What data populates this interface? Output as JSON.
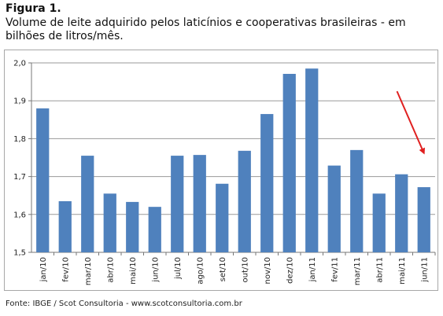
{
  "figure": {
    "label": "Figura 1.",
    "caption": "Volume de leite adquirido pelos laticínios e cooperativas brasileiras - em bilhões de litros/mês.",
    "source": "Fonte: IBGE / Scot Consultoria - www.scotconsultoria.com.br"
  },
  "chart_data": {
    "type": "bar",
    "title": "",
    "xlabel": "",
    "ylabel": "",
    "categories": [
      "jan/10",
      "fev/10",
      "mar/10",
      "abr/10",
      "mai/10",
      "jun/10",
      "jul/10",
      "ago/10",
      "set/10",
      "out/10",
      "nov/10",
      "dez/10",
      "jan/11",
      "fev/11",
      "mar/11",
      "abr/11",
      "mai/11",
      "jun/11"
    ],
    "values": [
      1.88,
      1.635,
      1.755,
      1.655,
      1.633,
      1.62,
      1.755,
      1.757,
      1.681,
      1.768,
      1.865,
      1.971,
      1.985,
      1.729,
      1.77,
      1.655,
      1.706,
      1.672
    ],
    "ylim": [
      1.5,
      2.0
    ],
    "yticks": [
      "1,5",
      "1,6",
      "1,7",
      "1,8",
      "1,9",
      "2,0"
    ],
    "grid": true,
    "bar_color": "#4f81bd",
    "annotation": {
      "type": "arrow",
      "color": "#e02020",
      "from_index": 15.8,
      "from_value": 1.925,
      "to_index": 17.0,
      "to_value": 1.762
    }
  }
}
